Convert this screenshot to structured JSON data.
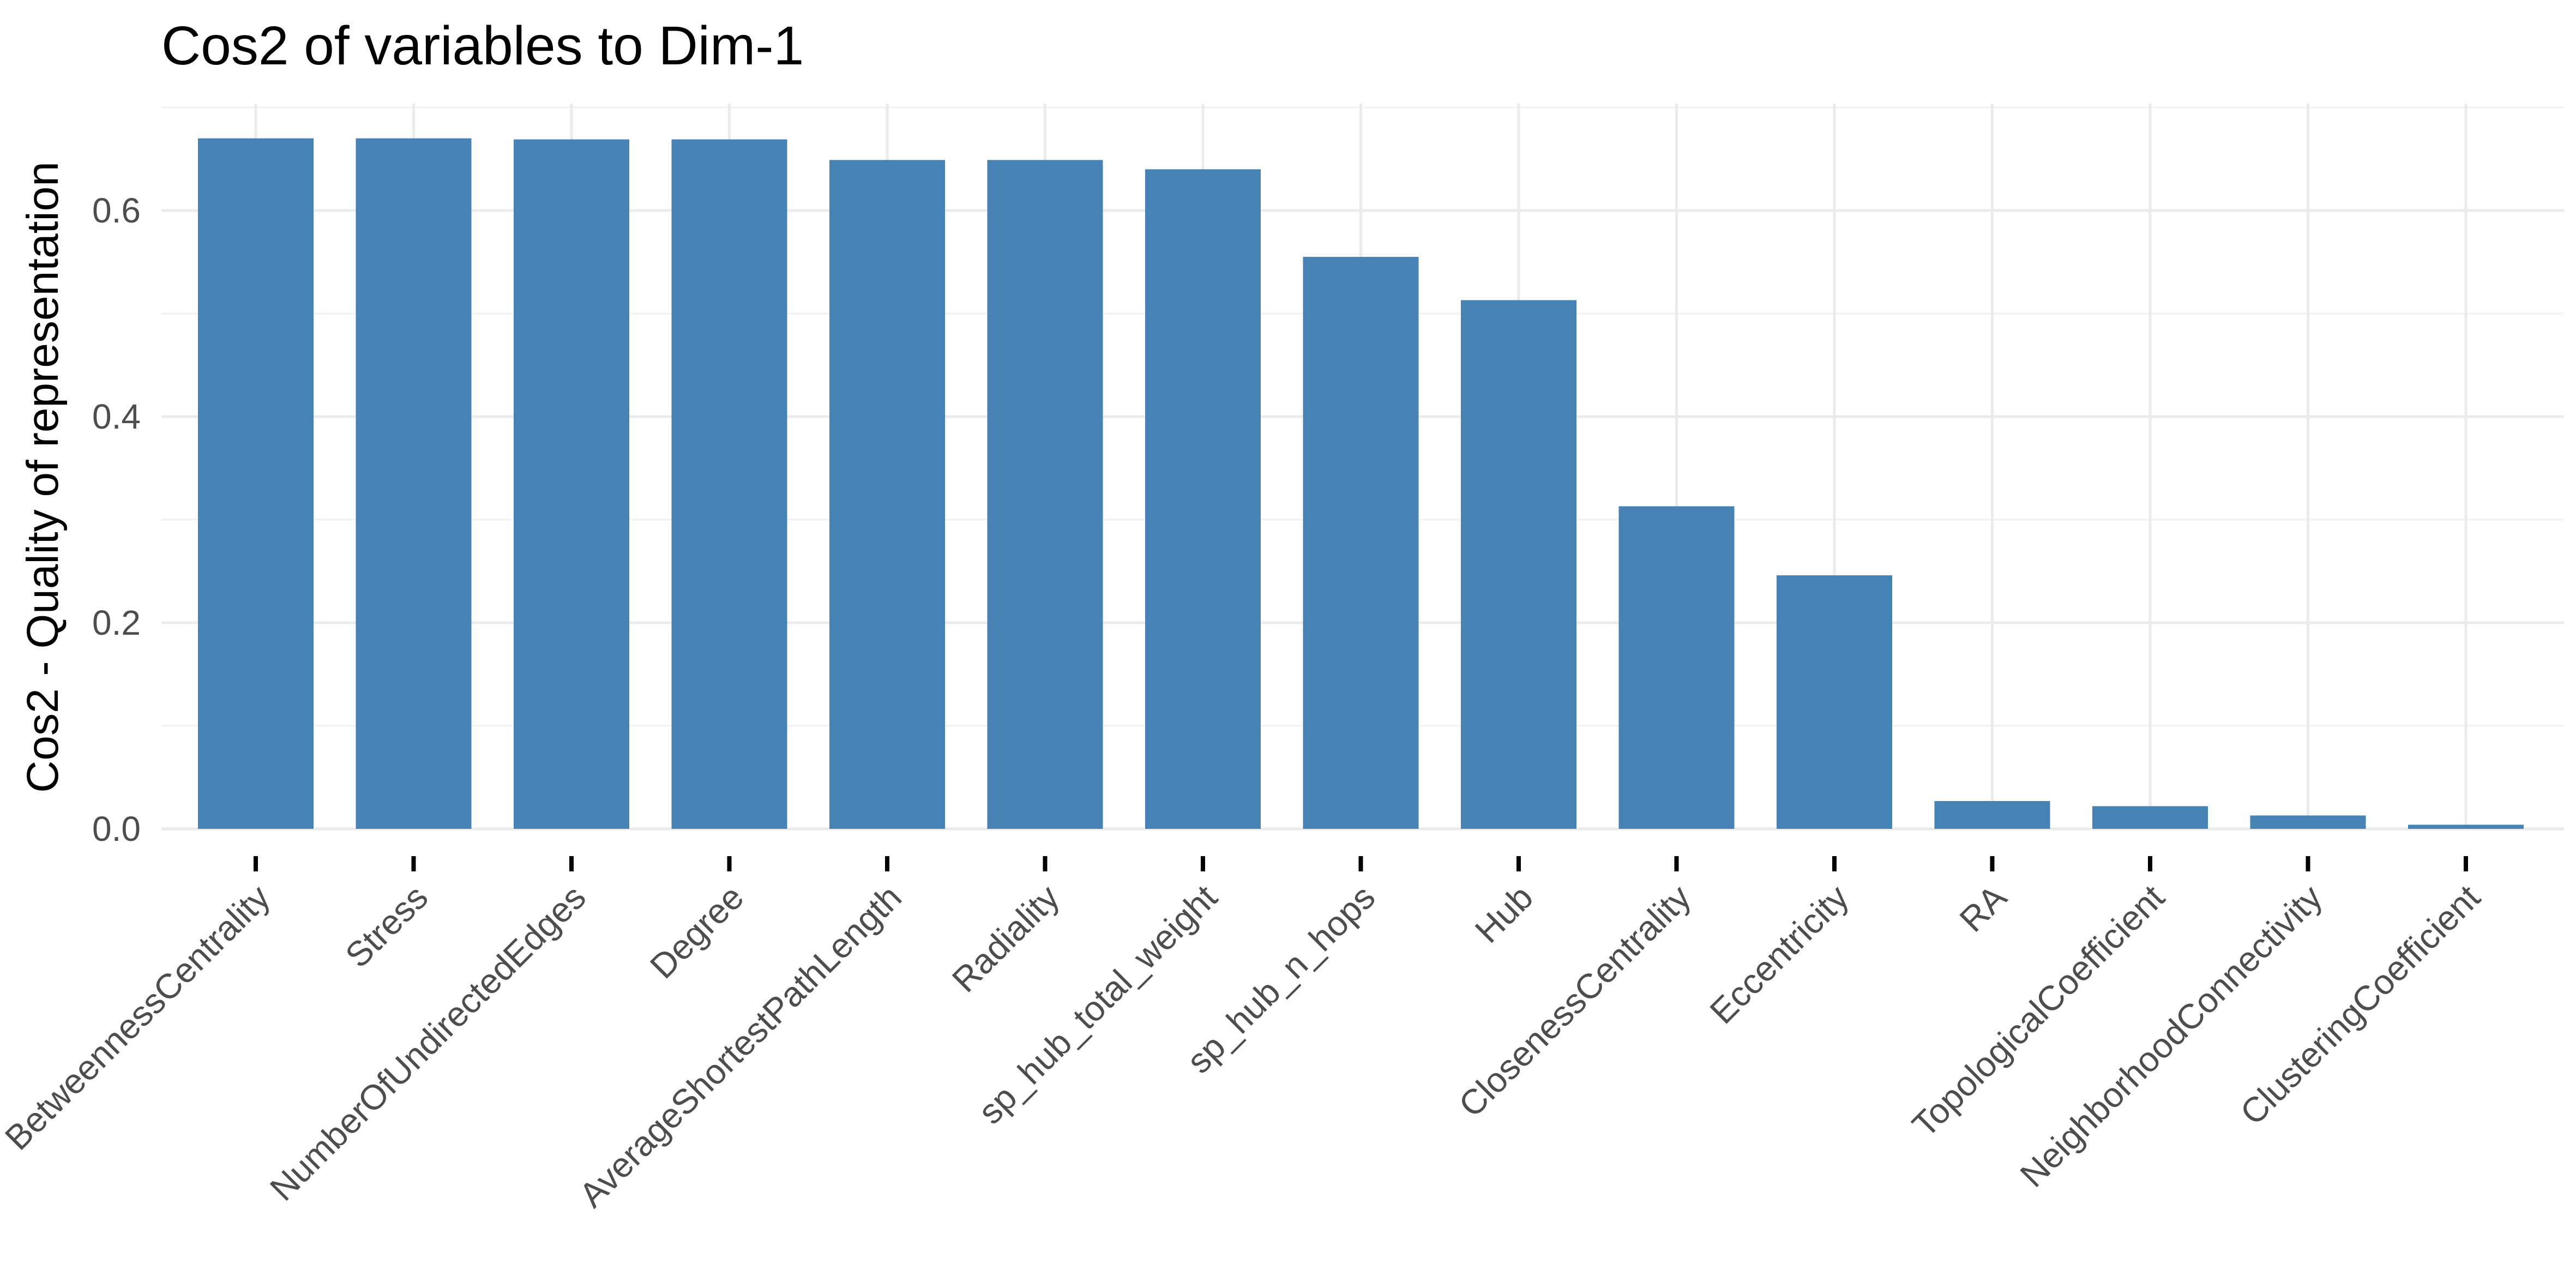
{
  "chart_data": {
    "type": "bar",
    "title": "Cos2 of variables to Dim-1",
    "xlabel": "",
    "ylabel": "Cos2 - Quality of representation",
    "categories": [
      "BetweennessCentrality",
      "Stress",
      "NumberOfUndirectedEdges",
      "Degree",
      "AverageShortestPathLength",
      "Radiality",
      "sp_hub_total_weight",
      "sp_hub_n_hops",
      "Hub",
      "ClosenessCentrality",
      "Eccentricity",
      "RA",
      "TopologicalCoefficient",
      "NeighborhoodConnectivity",
      "ClusteringCoefficient"
    ],
    "values": [
      0.67,
      0.67,
      0.669,
      0.669,
      0.649,
      0.649,
      0.64,
      0.555,
      0.513,
      0.313,
      0.246,
      0.027,
      0.022,
      0.013,
      0.004
    ],
    "ylim": [
      0,
      0.7
    ],
    "yticks": [
      "0.0",
      "0.2",
      "0.4",
      "0.6"
    ],
    "grid": true,
    "legend": "none",
    "bar_color": "#4682b4"
  }
}
